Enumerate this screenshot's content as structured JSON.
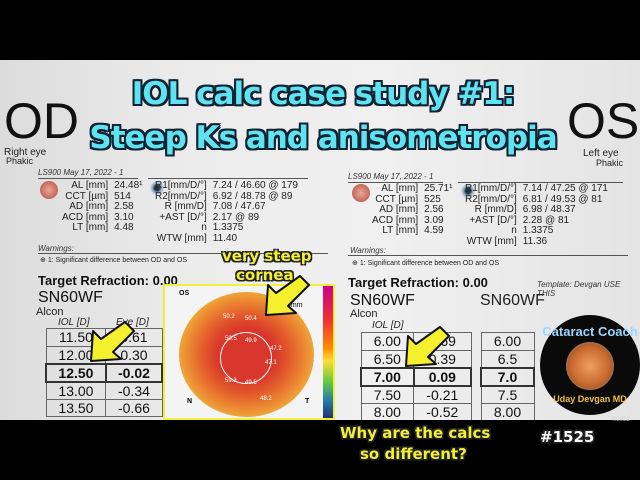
{
  "title": {
    "line1": "IOL calc case study #1:",
    "line2": "Steep Ks and anisometropia",
    "color": "#5fe3f0"
  },
  "od": {
    "label": "OD",
    "eye": "Right eye",
    "status": "Phakic",
    "device": "LS900 May 17, 2022 - 1",
    "bio": [
      [
        "AL [mm]",
        "24.48¹"
      ],
      [
        "CCT [µm]",
        "514"
      ],
      [
        "AD [mm]",
        "2.58"
      ],
      [
        "ACD [mm]",
        "3.10"
      ],
      [
        "LT [mm]",
        "4.48"
      ]
    ],
    "kera": [
      [
        "R1[mm/D/°]",
        "7.24 / 46.60 @ 179"
      ],
      [
        "R2[mm/D/°]",
        "6.92 / 48.78 @ 89"
      ],
      [
        "R [mm/D]",
        "7.08 / 47.67"
      ],
      [
        "+AST [D/°]",
        "2.17 @ 89"
      ],
      [
        "n",
        "1.3375"
      ],
      [
        "WTW [mm]",
        "11.40"
      ]
    ],
    "warnings_label": "Warnings:",
    "warning": "1: Significant difference between OD and OS",
    "target": "Target Refraction: 0.00",
    "lens": "SN60WF",
    "maker": "Alcon",
    "col_iol": "IOL [D]",
    "col_eye": "Eye [D]",
    "rows": [
      [
        "11.50",
        "0.61"
      ],
      [
        "12.00",
        "0.30"
      ],
      [
        "12.50",
        "-0.02"
      ],
      [
        "13.00",
        "-0.34"
      ],
      [
        "13.50",
        "-0.66"
      ]
    ],
    "selected_row": 2
  },
  "os": {
    "label": "OS",
    "eye": "Left eye",
    "status": "Phakic",
    "device": "LS900 May 17, 2022 - 1",
    "bio": [
      [
        "AL [mm]",
        "25.71¹"
      ],
      [
        "CCT [µm]",
        "525"
      ],
      [
        "AD [mm]",
        "2.56"
      ],
      [
        "ACD [mm]",
        "3.09"
      ],
      [
        "LT [mm]",
        "4.59"
      ]
    ],
    "kera": [
      [
        "R1[mm/D/°]",
        "7.14 / 47.25 @ 171"
      ],
      [
        "R2[mm/D/°]",
        "6.81 / 49.53 @ 81"
      ],
      [
        "R [mm/D]",
        "6.98 / 48.37"
      ],
      [
        "+AST [D/°]",
        "2.28 @ 81"
      ],
      [
        "n",
        "1.3375"
      ],
      [
        "WTW [mm]",
        "11.36"
      ]
    ],
    "warnings_label": "Warnings:",
    "warning": "1: Significant difference between OD and OS",
    "target": "Target Refraction: 0.00",
    "template": "Template: Devgan USE THIS",
    "lens": "SN60WF",
    "maker": "Alcon",
    "col_iol": "IOL [D]",
    "col_eye": "Eye [D]",
    "rows": [
      [
        "6.00",
        "0.69"
      ],
      [
        "6.50",
        "0.39"
      ],
      [
        "7.00",
        "0.09"
      ],
      [
        "7.50",
        "-0.21"
      ],
      [
        "8.00",
        "-0.52"
      ]
    ],
    "selected_row": 2,
    "rows2": [
      "6.00",
      "6.5",
      "7.0",
      "7.5",
      "8.00"
    ]
  },
  "topo": {
    "eye": "OS",
    "scale": "9mm",
    "labels": [
      "50.2",
      "50.4",
      "50.5",
      "49.9",
      "47.1",
      "59.3",
      "49.5",
      "47.2",
      "48.2"
    ],
    "n": "N",
    "t": "T"
  },
  "annotations": {
    "steep1": "very steep",
    "steep2": "cornea",
    "why1": "Why are the calcs",
    "why2": "so different?",
    "color": "#f2ee3a"
  },
  "logo": {
    "top": "Cataract Coach",
    "bottom": "Uday Devgan MD",
    "copyright": "©2022"
  },
  "episode": "#1525"
}
